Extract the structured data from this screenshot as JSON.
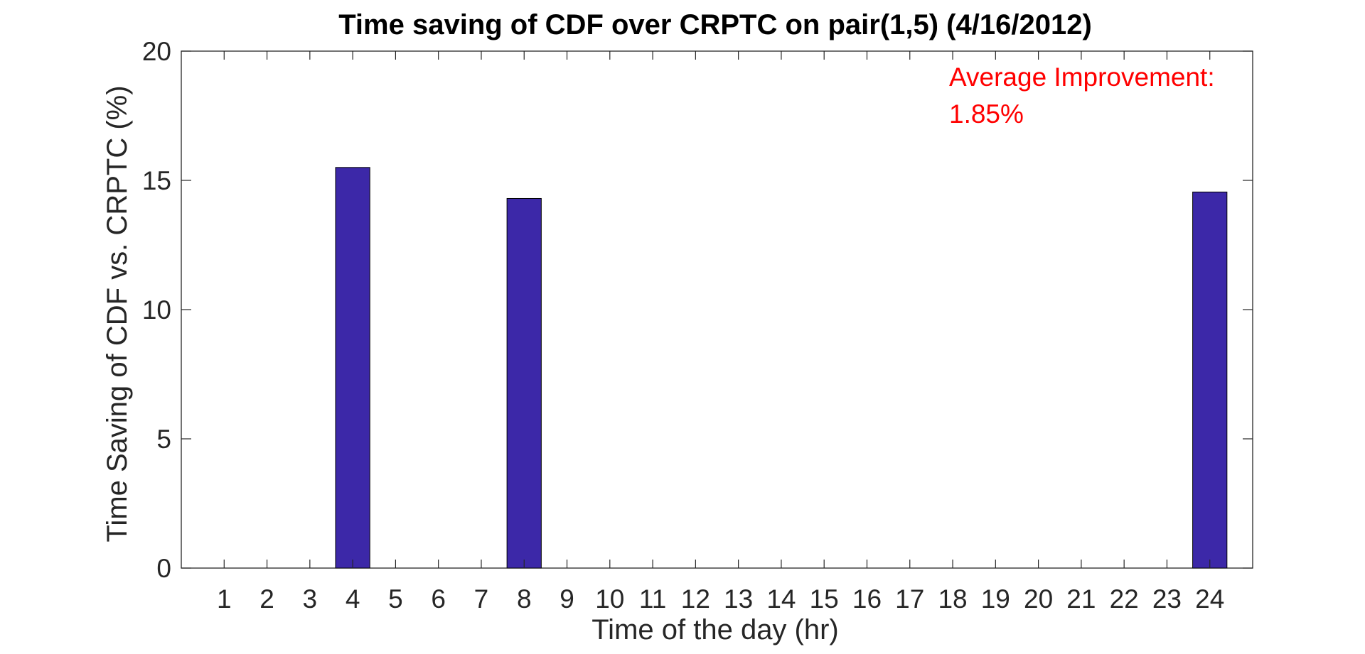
{
  "chart_data": {
    "type": "bar",
    "title": "Time saving of CDF over CRPTC on pair(1,5) (4/16/2012)",
    "xlabel": "Time of the day (hr)",
    "ylabel": "Time Saving of CDF vs. CRPTC (%)",
    "categories": [
      "1",
      "2",
      "3",
      "4",
      "5",
      "6",
      "7",
      "8",
      "9",
      "10",
      "11",
      "12",
      "13",
      "14",
      "15",
      "16",
      "17",
      "18",
      "19",
      "20",
      "21",
      "22",
      "23",
      "24"
    ],
    "values": [
      0,
      0,
      0,
      15.5,
      0,
      0,
      0,
      14.3,
      0,
      0,
      0,
      0,
      0,
      0,
      0,
      0,
      0,
      0,
      0,
      0,
      0,
      0,
      0,
      14.55
    ],
    "ylim": [
      0,
      20
    ],
    "yticks": [
      0,
      5,
      10,
      15,
      20
    ],
    "grid": false,
    "bar_color": "#3c28a8",
    "annotation": {
      "lines": [
        "Average Improvement:",
        "1.85%"
      ],
      "color": "#ff0000",
      "placement": "top-right"
    }
  }
}
